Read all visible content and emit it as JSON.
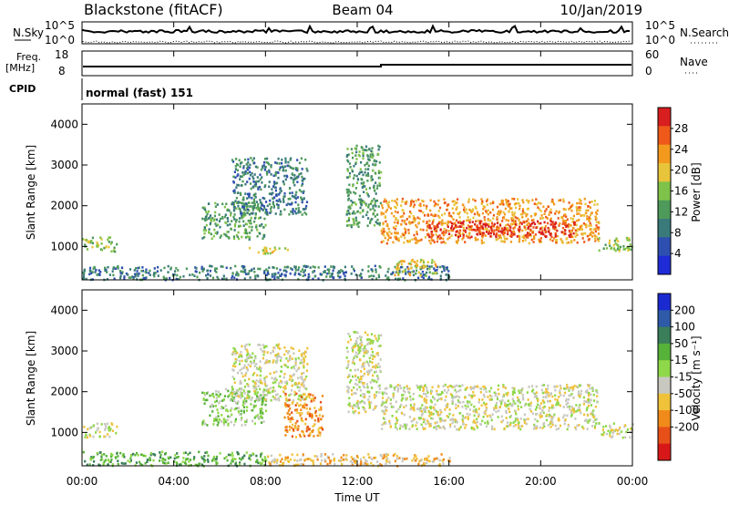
{
  "header": {
    "station": "Blackstone (fitACF)",
    "beam": "Beam 04",
    "date": "10/Jan/2019"
  },
  "noise_panel": {
    "left_label": "N.Sky",
    "right_label": "N.Search",
    "tick_high": "10^5",
    "tick_low": "10^0"
  },
  "freq_panel": {
    "left_label_line1": "Freq.",
    "left_label_line2": "[MHz]",
    "left_ticks": [
      "18",
      "8"
    ],
    "right_label": "Nave",
    "right_ticks": [
      "60",
      "0"
    ]
  },
  "cpid": {
    "label": "CPID",
    "value": "normal (fast) 151"
  },
  "x_axis": {
    "label": "Time UT",
    "ticks": [
      "00:00",
      "04:00",
      "08:00",
      "12:00",
      "16:00",
      "20:00",
      "00:00"
    ]
  },
  "colors": {
    "power": [
      "#1f2bd6",
      "#2e4fb0",
      "#3a7a7a",
      "#4e9a5a",
      "#7fc24a",
      "#e8c43a",
      "#f39a1e",
      "#ef5a1a",
      "#d81e1e"
    ],
    "velocity": [
      "#1a2ad0",
      "#2e5aa8",
      "#3a7e5a",
      "#57b23a",
      "#8fd84a",
      "#c8c8c0",
      "#f0c23a",
      "#f08a1a",
      "#e8501a",
      "#d81818"
    ]
  },
  "chart_data": [
    {
      "type": "heatmap",
      "name": "power-panel",
      "ylabel": "Slant Range [km]",
      "yticks": [
        "1000",
        "2000",
        "3000",
        "4000"
      ],
      "ylim": [
        180,
        4500
      ],
      "xlim": [
        0,
        24
      ],
      "colorbar": {
        "label": "Power [dB]",
        "ticks": [
          "4",
          "8",
          "12",
          "16",
          "20",
          "24",
          "28"
        ],
        "range": [
          0,
          32
        ]
      },
      "echo_regions": [
        {
          "t0": 0.0,
          "t1": 1.5,
          "r0": 900,
          "r1": 1250,
          "level": 4
        },
        {
          "t0": 5.2,
          "t1": 8.0,
          "r0": 1200,
          "r1": 2100,
          "level": 3
        },
        {
          "t0": 6.5,
          "t1": 9.8,
          "r0": 1800,
          "r1": 3200,
          "level": 2
        },
        {
          "t0": 7.2,
          "t1": 9.0,
          "r0": 850,
          "r1": 1000,
          "level": 5
        },
        {
          "t0": 11.5,
          "t1": 13.0,
          "r0": 1500,
          "r1": 3500,
          "level": 3
        },
        {
          "t0": 13.0,
          "t1": 22.5,
          "r0": 1100,
          "r1": 2200,
          "level": 6
        },
        {
          "t0": 15.0,
          "t1": 21.5,
          "r0": 1250,
          "r1": 1650,
          "level": 8
        },
        {
          "t0": 22.5,
          "t1": 24.0,
          "r0": 900,
          "r1": 1250,
          "level": 4
        },
        {
          "t0": 0.0,
          "t1": 16.0,
          "r0": 200,
          "r1": 550,
          "level": 2
        },
        {
          "t0": 13.5,
          "t1": 15.5,
          "r0": 300,
          "r1": 700,
          "level": 5
        }
      ]
    },
    {
      "type": "heatmap",
      "name": "velocity-panel",
      "ylabel": "Slant Range [km]",
      "yticks": [
        "1000",
        "2000",
        "3000",
        "4000"
      ],
      "ylim": [
        180,
        4500
      ],
      "xlim": [
        0,
        24
      ],
      "colorbar": {
        "label": "Velocity [m s⁻¹]",
        "ticks": [
          "200",
          "100",
          "50",
          "15",
          "-15",
          "-50",
          "-100",
          "-200"
        ],
        "range": [
          -250,
          250
        ]
      },
      "echo_regions": [
        {
          "t0": 0.0,
          "t1": 1.5,
          "r0": 900,
          "r1": 1250,
          "level": 5
        },
        {
          "t0": 5.2,
          "t1": 8.0,
          "r0": 1200,
          "r1": 2100,
          "level": 4
        },
        {
          "t0": 6.5,
          "t1": 9.8,
          "r0": 1800,
          "r1": 3200,
          "level": 5
        },
        {
          "t0": 8.8,
          "t1": 10.5,
          "r0": 900,
          "r1": 2000,
          "level": 7
        },
        {
          "t0": 11.5,
          "t1": 13.0,
          "r0": 1500,
          "r1": 3500,
          "level": 5
        },
        {
          "t0": 13.0,
          "t1": 22.5,
          "r0": 1100,
          "r1": 2200,
          "level": 5
        },
        {
          "t0": 22.5,
          "t1": 24.0,
          "r0": 900,
          "r1": 1250,
          "level": 5
        },
        {
          "t0": 0.0,
          "t1": 8.0,
          "r0": 200,
          "r1": 550,
          "level": 3
        },
        {
          "t0": 8.0,
          "t1": 16.0,
          "r0": 200,
          "r1": 500,
          "level": 6
        }
      ]
    }
  ]
}
